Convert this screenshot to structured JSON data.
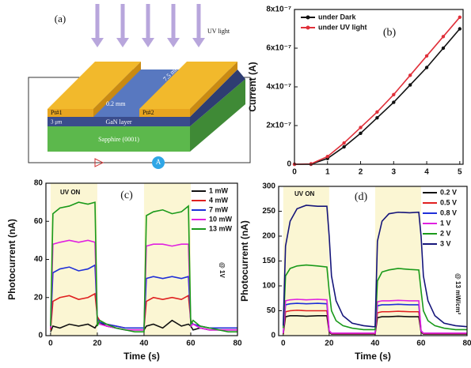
{
  "device": {
    "panel_label": "(a)",
    "light_label": "UV light",
    "electrode_left": "Pt#1",
    "electrode_right": "Pt#2",
    "gap": "0.2 mm",
    "length": "7.5 mm",
    "layer": "GaN layer",
    "thickness": "3 μm",
    "substrate": "Sapphire (0001)",
    "meter": "A"
  },
  "chart_data": [
    {
      "type": "line",
      "panel_label": "(b)",
      "ylabel": "Current (A)",
      "markers": true,
      "legend": "upper left",
      "xlim": [
        0,
        5.1
      ],
      "xticks": [
        0,
        1,
        2,
        3,
        4,
        5
      ],
      "ylim": [
        0,
        8e-07
      ],
      "yticks": [
        0,
        {
          "value": 2e-07,
          "label": "2x10⁻⁷"
        },
        {
          "value": 4e-07,
          "label": "4x10⁻⁷"
        },
        {
          "value": 6e-07,
          "label": "6x10⁻⁷"
        },
        {
          "value": 8e-07,
          "label": "8x10⁻⁷"
        }
      ],
      "x": [
        0,
        0.5,
        1,
        1.5,
        2,
        2.5,
        3,
        3.5,
        4,
        4.5,
        5
      ],
      "series": [
        {
          "name": "under Dark",
          "color": "#111111",
          "values": [
            0,
            0,
            3e-08,
            9e-08,
            1.6e-07,
            2.4e-07,
            3.2e-07,
            4.1e-07,
            5e-07,
            6e-07,
            7e-07
          ]
        },
        {
          "name": "under UV light",
          "color": "#e0303a",
          "values": [
            0,
            2e-09,
            4e-08,
            1.1e-07,
            1.9e-07,
            2.7e-07,
            3.6e-07,
            4.6e-07,
            5.6e-07,
            6.6e-07,
            7.6e-07
          ]
        }
      ]
    },
    {
      "type": "line",
      "panel_label": "(c)",
      "xlabel": "Time (s)",
      "ylabel": "Photocurrent (nA)",
      "legend": "upper right",
      "annotations": [
        "UV ON",
        "@ 1V"
      ],
      "shaded": [
        [
          0,
          20
        ],
        [
          40,
          60
        ]
      ],
      "shade_color": "#fbf6d3",
      "xlim": [
        -2,
        80
      ],
      "xticks": [
        0,
        20,
        40,
        60,
        80
      ],
      "ylim": [
        0,
        80
      ],
      "yticks": [
        0,
        20,
        40,
        60,
        80
      ],
      "x": [
        0,
        1,
        4,
        8,
        12,
        16,
        19,
        20,
        21,
        24,
        28,
        32,
        36,
        39,
        40,
        41,
        44,
        48,
        52,
        56,
        59,
        60,
        61,
        64,
        68,
        72,
        76,
        80
      ],
      "series": [
        {
          "name": "1 mW",
          "color": "#111111",
          "values": [
            2,
            5,
            4,
            6,
            5,
            6,
            4,
            6,
            7,
            5,
            4,
            3,
            3,
            3,
            3,
            5,
            6,
            4,
            8,
            5,
            6,
            5,
            3,
            4,
            3,
            3,
            3,
            3
          ]
        },
        {
          "name": "4 mW",
          "color": "#e02020",
          "values": [
            3,
            18,
            20,
            21,
            19,
            20,
            22,
            10,
            8,
            6,
            5,
            4,
            4,
            4,
            4,
            18,
            20,
            19,
            20,
            19,
            21,
            8,
            6,
            5,
            4,
            4,
            4,
            4
          ]
        },
        {
          "name": "7 mW",
          "color": "#1f2fd8",
          "values": [
            4,
            33,
            35,
            36,
            34,
            35,
            37,
            9,
            7,
            6,
            5,
            4,
            4,
            4,
            4,
            30,
            31,
            30,
            31,
            30,
            31,
            7,
            6,
            5,
            4,
            4,
            4,
            4
          ]
        },
        {
          "name": "10 mW",
          "color": "#e020e0",
          "values": [
            4,
            48,
            49,
            50,
            49,
            50,
            49,
            8,
            6,
            5,
            4,
            3,
            3,
            3,
            3,
            47,
            48,
            48,
            47,
            48,
            48,
            5,
            6,
            4,
            3,
            3,
            3,
            3
          ]
        },
        {
          "name": "13 mW",
          "color": "#1a9a1a",
          "values": [
            5,
            64,
            67,
            68,
            70,
            69,
            70,
            5,
            8,
            6,
            4,
            3,
            2,
            2,
            2,
            63,
            65,
            66,
            64,
            65,
            68,
            6,
            8,
            5,
            4,
            3,
            2,
            2
          ]
        }
      ]
    },
    {
      "type": "line",
      "panel_label": "(d)",
      "xlabel": "Time (s)",
      "ylabel": "Photocurrent (nA)",
      "legend": "upper right",
      "annotations": [
        "UV ON",
        "@ 13 mW/cm²"
      ],
      "shaded": [
        [
          0,
          20
        ],
        [
          40,
          60
        ]
      ],
      "shade_color": "#fbf6d3",
      "xlim": [
        -2,
        80
      ],
      "xticks": [
        0,
        20,
        40,
        60,
        80
      ],
      "ylim": [
        0,
        300
      ],
      "yticks": [
        0,
        50,
        100,
        150,
        200,
        250,
        300
      ],
      "x": [
        0,
        1,
        3,
        6,
        10,
        15,
        19,
        20,
        21,
        23,
        26,
        30,
        35,
        39,
        40,
        41,
        43,
        46,
        50,
        55,
        59,
        60,
        61,
        63,
        66,
        70,
        75,
        80
      ],
      "series": [
        {
          "name": "0.2 V",
          "color": "#111111",
          "values": [
            3,
            38,
            40,
            40,
            39,
            40,
            40,
            7,
            3,
            3,
            3,
            3,
            3,
            3,
            3,
            36,
            38,
            38,
            39,
            38,
            38,
            7,
            3,
            3,
            3,
            3,
            3,
            3
          ]
        },
        {
          "name": "0.5 V",
          "color": "#e02020",
          "values": [
            4,
            48,
            50,
            51,
            50,
            50,
            50,
            8,
            4,
            4,
            4,
            4,
            4,
            4,
            4,
            46,
            48,
            48,
            49,
            48,
            48,
            8,
            4,
            4,
            4,
            4,
            4,
            4
          ]
        },
        {
          "name": "0.8 V",
          "color": "#1f2fd8",
          "values": [
            5,
            62,
            64,
            65,
            64,
            65,
            64,
            9,
            5,
            5,
            5,
            5,
            5,
            5,
            5,
            60,
            62,
            62,
            63,
            62,
            62,
            9,
            5,
            5,
            5,
            5,
            5,
            5
          ]
        },
        {
          "name": "1 V",
          "color": "#e020e0",
          "values": [
            5,
            70,
            72,
            73,
            72,
            73,
            72,
            10,
            5,
            5,
            5,
            5,
            5,
            5,
            5,
            68,
            70,
            70,
            71,
            70,
            70,
            10,
            5,
            5,
            5,
            5,
            5,
            5
          ]
        },
        {
          "name": "2 V",
          "color": "#1a9a1a",
          "values": [
            15,
            120,
            135,
            140,
            142,
            140,
            138,
            90,
            50,
            30,
            20,
            15,
            12,
            12,
            12,
            110,
            128,
            132,
            135,
            133,
            132,
            90,
            50,
            30,
            20,
            15,
            12,
            12
          ]
        },
        {
          "name": "3 V",
          "color": "#15157a",
          "values": [
            20,
            180,
            230,
            255,
            262,
            260,
            260,
            200,
            120,
            70,
            40,
            25,
            20,
            18,
            18,
            190,
            230,
            245,
            248,
            247,
            248,
            200,
            120,
            70,
            40,
            25,
            20,
            18
          ]
        }
      ]
    }
  ]
}
